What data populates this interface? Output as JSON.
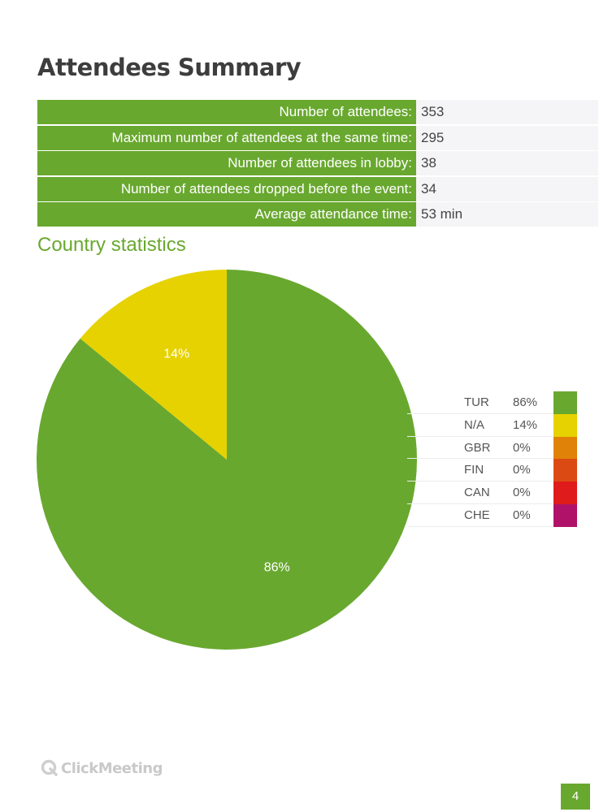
{
  "title": "Attendees Summary",
  "summary": [
    {
      "label": "Number of attendees:",
      "value": "353"
    },
    {
      "label": "Maximum number of attendees at the same time:",
      "value": "295"
    },
    {
      "label": "Number of attendees in lobby:",
      "value": "38"
    },
    {
      "label": "Number of attendees dropped before the event:",
      "value": "34"
    },
    {
      "label": "Average attendance time:",
      "value": "53 min"
    }
  ],
  "section_title": "Country statistics",
  "chart_data": {
    "type": "pie",
    "categories": [
      "TUR",
      "N/A",
      "GBR",
      "FIN",
      "CAN",
      "CHE"
    ],
    "values": [
      86,
      14,
      0,
      0,
      0,
      0
    ],
    "value_labels": [
      "86%",
      "14%",
      "0%",
      "0%",
      "0%",
      "0%"
    ],
    "colors": [
      "#69a82f",
      "#e6d200",
      "#e08208",
      "#dc4a14",
      "#e01b1b",
      "#b01269"
    ],
    "legend_position": "right"
  },
  "logo": "ClickMeeting",
  "page_number": "4"
}
